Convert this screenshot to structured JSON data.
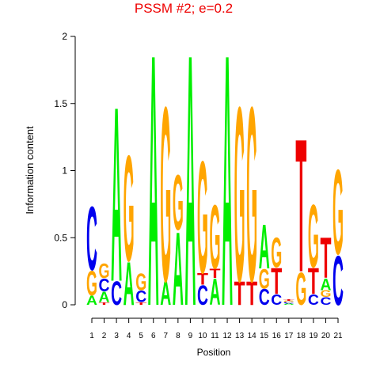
{
  "chart_data": {
    "type": "logo",
    "title": "PSSM #2; e=0.2",
    "x_label": "Position",
    "y_label": "Information content",
    "categories": [
      "1",
      "2",
      "3",
      "4",
      "5",
      "6",
      "7",
      "8",
      "9",
      "10",
      "11",
      "12",
      "13",
      "14",
      "15",
      "16",
      "17",
      "18",
      "19",
      "20",
      "21"
    ],
    "ylim": [
      0,
      2
    ],
    "yticks": [
      0,
      0.5,
      1,
      1.5,
      2
    ],
    "colors": {
      "A": "#00ee00",
      "C": "#0000ee",
      "G": "#ffa500",
      "T": "#ee0000"
    },
    "stacks": [
      [
        {
          "letter": "A",
          "height": 0.07
        },
        {
          "letter": "G",
          "height": 0.19
        },
        {
          "letter": "C",
          "height": 0.49
        }
      ],
      [
        {
          "letter": "T",
          "height": 0.02
        },
        {
          "letter": "A",
          "height": 0.08
        },
        {
          "letter": "C",
          "height": 0.1
        },
        {
          "letter": "G",
          "height": 0.11
        }
      ],
      [
        {
          "letter": "C",
          "height": 0.18
        },
        {
          "letter": "A",
          "height": 1.34
        }
      ],
      [
        {
          "letter": "A",
          "height": 0.33
        },
        {
          "letter": "G",
          "height": 0.81
        }
      ],
      [
        {
          "letter": "T",
          "height": 0.02
        },
        {
          "letter": "C",
          "height": 0.09
        },
        {
          "letter": "G",
          "height": 0.13
        }
      ],
      [
        {
          "letter": "A",
          "height": 1.93
        }
      ],
      [
        {
          "letter": "A",
          "height": 0.18
        },
        {
          "letter": "G",
          "height": 1.34
        }
      ],
      [
        {
          "letter": "A",
          "height": 0.56
        },
        {
          "letter": "G",
          "height": 0.42
        }
      ],
      [
        {
          "letter": "A",
          "height": 1.93
        }
      ],
      [
        {
          "letter": "C",
          "height": 0.15
        },
        {
          "letter": "T",
          "height": 0.09
        },
        {
          "letter": "G",
          "height": 0.86
        }
      ],
      [
        {
          "letter": "A",
          "height": 0.2
        },
        {
          "letter": "T",
          "height": 0.07
        },
        {
          "letter": "G",
          "height": 0.49
        }
      ],
      [
        {
          "letter": "A",
          "height": 1.93
        }
      ],
      [
        {
          "letter": "T",
          "height": 0.18
        },
        {
          "letter": "G",
          "height": 1.34
        }
      ],
      [
        {
          "letter": "T",
          "height": 0.18
        },
        {
          "letter": "G",
          "height": 1.34
        }
      ],
      [
        {
          "letter": "C",
          "height": 0.12
        },
        {
          "letter": "G",
          "height": 0.15
        },
        {
          "letter": "A",
          "height": 0.34
        }
      ],
      [
        {
          "letter": "C",
          "height": 0.08
        },
        {
          "letter": "T",
          "height": 0.2
        },
        {
          "letter": "G",
          "height": 0.23
        }
      ],
      [
        {
          "letter": "A",
          "height": 0.01
        },
        {
          "letter": "C",
          "height": 0.01
        },
        {
          "letter": "G",
          "height": 0.01
        },
        {
          "letter": "T",
          "height": 0.01
        }
      ],
      [
        {
          "letter": "G",
          "height": 0.25
        },
        {
          "letter": "T",
          "height": 1.02
        }
      ],
      [
        {
          "letter": "C",
          "height": 0.08
        },
        {
          "letter": "T",
          "height": 0.2
        },
        {
          "letter": "G",
          "height": 0.48
        }
      ],
      [
        {
          "letter": "C",
          "height": 0.06
        },
        {
          "letter": "G",
          "height": 0.05
        },
        {
          "letter": "A",
          "height": 0.09
        },
        {
          "letter": "T",
          "height": 0.31
        }
      ],
      [
        {
          "letter": "C",
          "height": 0.38
        },
        {
          "letter": "G",
          "height": 0.65
        }
      ]
    ]
  }
}
